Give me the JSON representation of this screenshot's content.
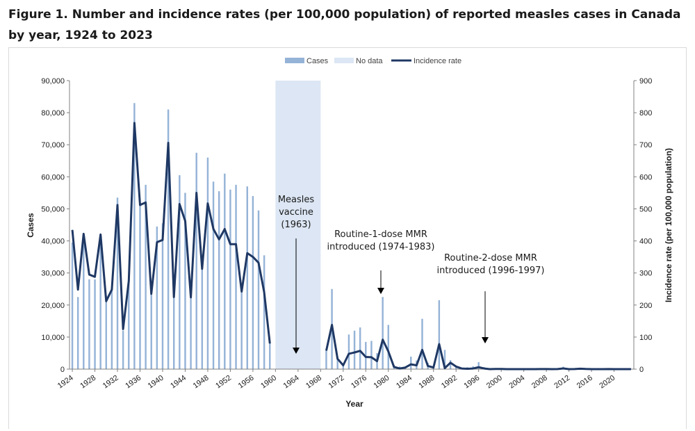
{
  "title": "Figure 1. Number and incidence rates (per 100,000 population) of reported measles cases in Canada by year, 1924 to 2023",
  "colors": {
    "cases": "#95b3d7",
    "no_data": "#dce6f4",
    "incidence": "#1f3864",
    "axis": "#808080"
  },
  "legend": {
    "cases": "Cases",
    "no_data": "No data",
    "incidence": "Incidence rate"
  },
  "annotations": {
    "vaccine": [
      "Measles",
      "vaccine",
      "(1963)"
    ],
    "mmr1": [
      "Routine-1-dose MMR",
      "introduced (1974-1983)"
    ],
    "mmr2": [
      "Routine-2-dose MMR",
      "introduced (1996-1997)"
    ]
  },
  "chart_data": {
    "type": "bar+line",
    "xlabel": "Year",
    "ylabel": "Cases",
    "y2label": "Incidence rate (per 100,000 population)",
    "ylim": [
      0,
      90000
    ],
    "y2lim": [
      0,
      900
    ],
    "yticks": [
      "0",
      "10,000",
      "20,000",
      "30,000",
      "40,000",
      "50,000",
      "60,000",
      "70,000",
      "80,000",
      "90,000"
    ],
    "y2ticks": [
      "0",
      "100",
      "200",
      "300",
      "400",
      "500",
      "600",
      "700",
      "800",
      "900"
    ],
    "xticks": [
      "1924",
      "1928",
      "1932",
      "1936",
      "1940",
      "1944",
      "1948",
      "1952",
      "1956",
      "1960",
      "1964",
      "1968",
      "1972",
      "1976",
      "1980",
      "1984",
      "1988",
      "1992",
      "1996",
      "2000",
      "2004",
      "2008",
      "2012",
      "2016",
      "2020"
    ],
    "no_data_years": [
      1960,
      1968
    ],
    "years": [
      1924,
      1925,
      1926,
      1927,
      1928,
      1929,
      1930,
      1931,
      1932,
      1933,
      1934,
      1935,
      1936,
      1937,
      1938,
      1939,
      1940,
      1941,
      1942,
      1943,
      1944,
      1945,
      1946,
      1947,
      1948,
      1949,
      1950,
      1951,
      1952,
      1953,
      1954,
      1955,
      1956,
      1957,
      1958,
      1959,
      1960,
      1961,
      1962,
      1963,
      1964,
      1965,
      1966,
      1967,
      1968,
      1969,
      1970,
      1971,
      1972,
      1973,
      1974,
      1975,
      1976,
      1977,
      1978,
      1979,
      1980,
      1981,
      1982,
      1983,
      1984,
      1985,
      1986,
      1987,
      1988,
      1989,
      1990,
      1991,
      1992,
      1993,
      1994,
      1995,
      1996,
      1997,
      1998,
      1999,
      2000,
      2001,
      2002,
      2003,
      2004,
      2005,
      2006,
      2007,
      2008,
      2009,
      2010,
      2011,
      2012,
      2013,
      2014,
      2015,
      2016,
      2017,
      2018,
      2019,
      2020,
      2021,
      2022,
      2023
    ],
    "series": [
      {
        "name": "Cases",
        "type": "bar",
        "values": [
          39500,
          22500,
          42000,
          28000,
          28000,
          41000,
          23000,
          25000,
          53500,
          12000,
          29000,
          83000,
          51000,
          57500,
          24000,
          44500,
          45500,
          81000,
          22500,
          60500,
          55000,
          22500,
          67500,
          31500,
          66000,
          58500,
          55500,
          61000,
          56000,
          57500,
          24500,
          57000,
          54000,
          49500,
          35500,
          8000,
          null,
          null,
          null,
          null,
          null,
          null,
          null,
          null,
          null,
          6000,
          25000,
          3500,
          1500,
          10800,
          12000,
          13000,
          8500,
          8800,
          5000,
          22500,
          13800,
          1300,
          800,
          800,
          3900,
          2700,
          15700,
          2000,
          900,
          21500,
          6000,
          2800,
          900,
          300,
          600,
          900,
          2200,
          600,
          12,
          200,
          199,
          37,
          8,
          18,
          9,
          6,
          1,
          101,
          58,
          17,
          99,
          752,
          10,
          83,
          418,
          196,
          11,
          45,
          29,
          113,
          1,
          0,
          3,
          12
        ]
      },
      {
        "name": "Incidence rate",
        "type": "line",
        "axis": "right",
        "values": [
          434,
          248,
          422,
          295,
          288,
          420,
          212,
          248,
          512,
          125,
          275,
          768,
          512,
          520,
          235,
          396,
          403,
          706,
          225,
          515,
          462,
          224,
          550,
          313,
          517,
          437,
          405,
          437,
          390,
          390,
          242,
          362,
          350,
          332,
          240,
          80,
          null,
          null,
          null,
          null,
          null,
          null,
          null,
          null,
          null,
          58,
          138,
          32,
          12,
          48,
          52,
          57,
          38,
          37,
          25,
          92,
          55,
          7,
          2,
          5,
          15,
          12,
          60,
          10,
          5,
          78,
          3,
          20,
          8,
          2,
          1,
          2,
          6,
          2,
          0.1,
          0.6,
          0.6,
          0.1,
          0.03,
          0.06,
          0.03,
          0.02,
          0.003,
          0.3,
          0.2,
          0.05,
          0.3,
          2.2,
          0.03,
          0.2,
          1.2,
          0.5,
          0.03,
          0.1,
          0.08,
          0.3,
          0.003,
          0,
          0.008,
          0.03
        ]
      }
    ]
  }
}
